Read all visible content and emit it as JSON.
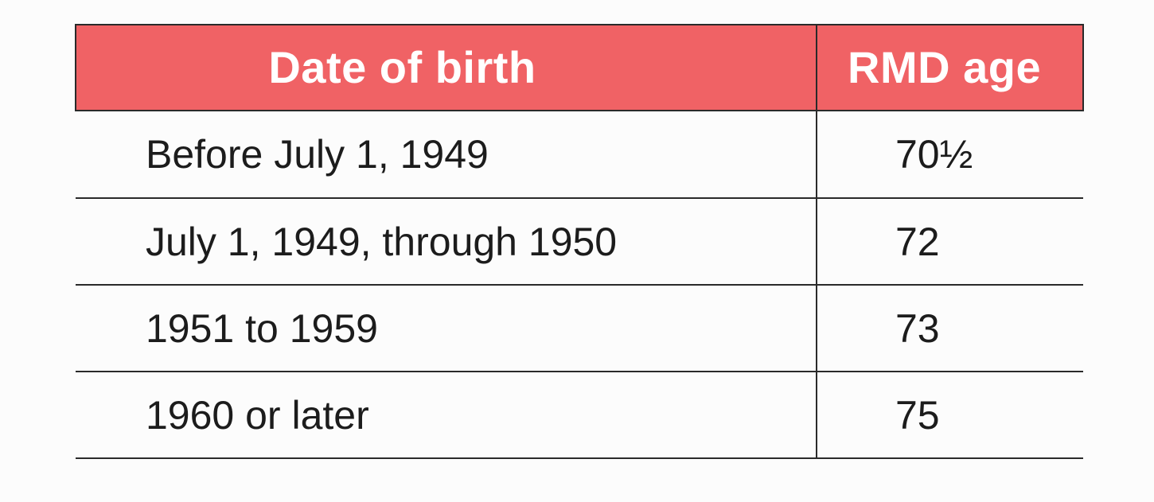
{
  "table": {
    "headers": {
      "date_of_birth": "Date of birth",
      "rmd_age": "RMD age"
    },
    "rows": [
      {
        "date_of_birth": "Before July 1, 1949",
        "rmd_age": "70½"
      },
      {
        "date_of_birth": "July 1, 1949, through 1950",
        "rmd_age": "72"
      },
      {
        "date_of_birth": "1951 to 1959",
        "rmd_age": "73"
      },
      {
        "date_of_birth": "1960 or later",
        "rmd_age": "75"
      }
    ]
  },
  "colors": {
    "header_background": "#f06265",
    "header_text": "#ffffff",
    "body_text": "#1c1c1c",
    "rule": "#2a2a2a"
  }
}
